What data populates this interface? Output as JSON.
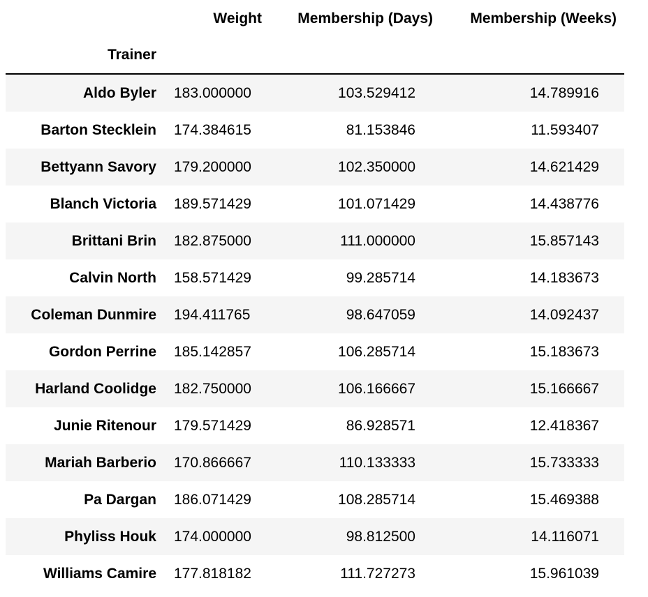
{
  "table": {
    "columns": [
      "Weight",
      "Membership (Days)",
      "Membership (Weeks)"
    ],
    "index_name": "Trainer",
    "rows": [
      {
        "trainer": "Aldo Byler",
        "weight": "183.000000",
        "days": "103.529412",
        "weeks": "14.789916"
      },
      {
        "trainer": "Barton Stecklein",
        "weight": "174.384615",
        "days": "81.153846",
        "weeks": "11.593407"
      },
      {
        "trainer": "Bettyann Savory",
        "weight": "179.200000",
        "days": "102.350000",
        "weeks": "14.621429"
      },
      {
        "trainer": "Blanch Victoria",
        "weight": "189.571429",
        "days": "101.071429",
        "weeks": "14.438776"
      },
      {
        "trainer": "Brittani Brin",
        "weight": "182.875000",
        "days": "111.000000",
        "weeks": "15.857143"
      },
      {
        "trainer": "Calvin North",
        "weight": "158.571429",
        "days": "99.285714",
        "weeks": "14.183673"
      },
      {
        "trainer": "Coleman Dunmire",
        "weight": "194.411765",
        "days": "98.647059",
        "weeks": "14.092437"
      },
      {
        "trainer": "Gordon Perrine",
        "weight": "185.142857",
        "days": "106.285714",
        "weeks": "15.183673"
      },
      {
        "trainer": "Harland Coolidge",
        "weight": "182.750000",
        "days": "106.166667",
        "weeks": "15.166667"
      },
      {
        "trainer": "Junie Ritenour",
        "weight": "179.571429",
        "days": "86.928571",
        "weeks": "12.418367"
      },
      {
        "trainer": "Mariah Barberio",
        "weight": "170.866667",
        "days": "110.133333",
        "weeks": "15.733333"
      },
      {
        "trainer": "Pa Dargan",
        "weight": "186.071429",
        "days": "108.285714",
        "weeks": "15.469388"
      },
      {
        "trainer": "Phyliss Houk",
        "weight": "174.000000",
        "days": "98.812500",
        "weeks": "14.116071"
      },
      {
        "trainer": "Williams Camire",
        "weight": "177.818182",
        "days": "111.727273",
        "weeks": "15.961039"
      }
    ]
  }
}
